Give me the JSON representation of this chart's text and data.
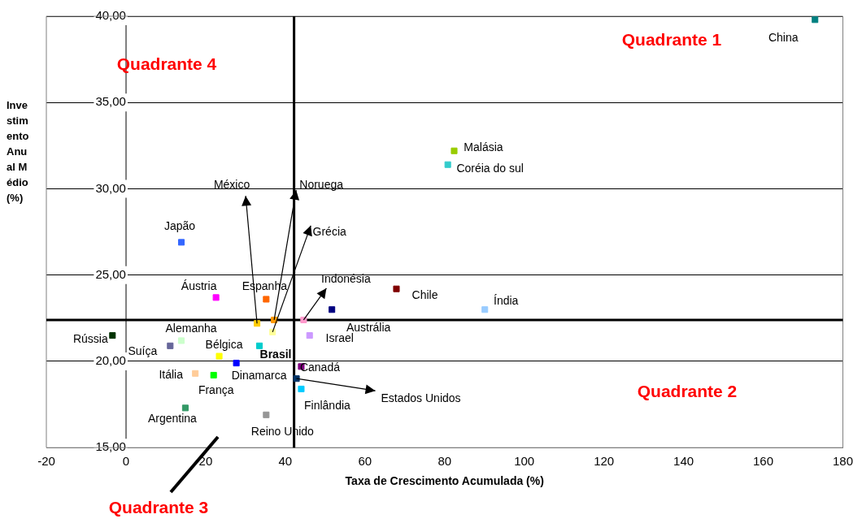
{
  "chart_data": {
    "type": "scatter",
    "xlabel": "Taxa de Crescimento Acumulada (%)",
    "ylabel": "Investimento Anual Médio (%)",
    "xlim": [
      -20,
      180
    ],
    "xticks": [
      -20,
      0,
      20,
      40,
      60,
      80,
      100,
      120,
      140,
      160,
      180
    ],
    "ylim": [
      15,
      40
    ],
    "yticks": [
      {
        "value": 15,
        "label": "15,00"
      },
      {
        "value": 20,
        "label": "20,00"
      },
      {
        "value": 25,
        "label": "25,00"
      },
      {
        "value": 30,
        "label": "30,00"
      },
      {
        "value": 35,
        "label": "35,00"
      },
      {
        "value": 40,
        "label": "40,00"
      }
    ],
    "grid": "y",
    "legend": false,
    "marker": "square",
    "ref_lines": [
      {
        "axis": "x",
        "value": 42.2,
        "color": "#000000"
      },
      {
        "axis": "y",
        "value": 22.4,
        "color": "#000000"
      }
    ],
    "annotations": [
      "Quadrante 1",
      "Quadrante 4",
      "Quadrante 3",
      "Quadrante 2"
    ],
    "series": [
      {
        "name": "China",
        "color": "#008080",
        "x": [
          173
        ],
        "values": [
          39.8
        ]
      },
      {
        "name": "Malásia",
        "color": "#99cc00",
        "x": [
          82.4
        ],
        "values": [
          32.2
        ]
      },
      {
        "name": "Coréia do sul",
        "color": "#33cccc",
        "x": [
          80.8
        ],
        "values": [
          31.4
        ]
      },
      {
        "name": "Japão",
        "color": "#3366ff",
        "x": [
          13.9
        ],
        "values": [
          26.9
        ]
      },
      {
        "name": "Áustria",
        "color": "#ff00ff",
        "x": [
          22.6
        ],
        "values": [
          23.7
        ]
      },
      {
        "name": "Espanha",
        "color": "#ff6600",
        "x": [
          35.2
        ],
        "values": [
          23.6
        ]
      },
      {
        "name": "México",
        "color": "#ffcc00",
        "x": [
          32.9
        ],
        "values": [
          22.2
        ]
      },
      {
        "name": "Noruega",
        "color": "#ff9900",
        "x": [
          37.2
        ],
        "values": [
          22.4
        ]
      },
      {
        "name": "Grécia",
        "color": "#ffff99",
        "x": [
          36.8
        ],
        "values": [
          21.7
        ]
      },
      {
        "name": "Indonésia",
        "color": "#ff99cc",
        "x": [
          44.6
        ],
        "values": [
          22.4
        ]
      },
      {
        "name": "Austrália",
        "color": "#000080",
        "x": [
          51.7
        ],
        "values": [
          23.0
        ]
      },
      {
        "name": "Chile",
        "color": "#800000",
        "x": [
          67.9
        ],
        "values": [
          24.2
        ]
      },
      {
        "name": "Índia",
        "color": "#99ccff",
        "x": [
          90.1
        ],
        "values": [
          23.0
        ]
      },
      {
        "name": "Rússia",
        "color": "#003300",
        "x": [
          -3.4
        ],
        "values": [
          21.5
        ]
      },
      {
        "name": "Alemanha",
        "color": "#ccffcc",
        "x": [
          13.9
        ],
        "values": [
          21.2
        ]
      },
      {
        "name": "Suíça",
        "color": "#666699",
        "x": [
          11.1
        ],
        "values": [
          20.9
        ]
      },
      {
        "name": "Bélgica",
        "color": "#ffff00",
        "x": [
          23.4
        ],
        "values": [
          20.3
        ]
      },
      {
        "name": "Brasil",
        "color": "#00cccc",
        "x": [
          33.5
        ],
        "values": [
          20.9
        ]
      },
      {
        "name": "Itália",
        "color": "#ffcc99",
        "x": [
          17.4
        ],
        "values": [
          19.3
        ]
      },
      {
        "name": "França",
        "color": "#00ff00",
        "x": [
          22.0
        ],
        "values": [
          19.2
        ]
      },
      {
        "name": "Dinamarca",
        "color": "#0000ff",
        "x": [
          27.7
        ],
        "values": [
          19.9
        ]
      },
      {
        "name": "Canadá",
        "color": "#800080",
        "x": [
          44.0
        ],
        "values": [
          19.7
        ]
      },
      {
        "name": "Estados Unidos",
        "color": "#003366",
        "x": [
          42.8
        ],
        "values": [
          19.0
        ]
      },
      {
        "name": "Finlândia",
        "color": "#00ccff",
        "x": [
          44.0
        ],
        "values": [
          18.4
        ]
      },
      {
        "name": "Argentina",
        "color": "#339966",
        "x": [
          14.9
        ],
        "values": [
          17.3
        ]
      },
      {
        "name": "Reino Unido",
        "color": "#969696",
        "x": [
          35.2
        ],
        "values": [
          16.9
        ]
      },
      {
        "name": "Israel",
        "color": "#cc99ff",
        "x": [
          46.1
        ],
        "values": [
          21.5
        ]
      }
    ]
  }
}
